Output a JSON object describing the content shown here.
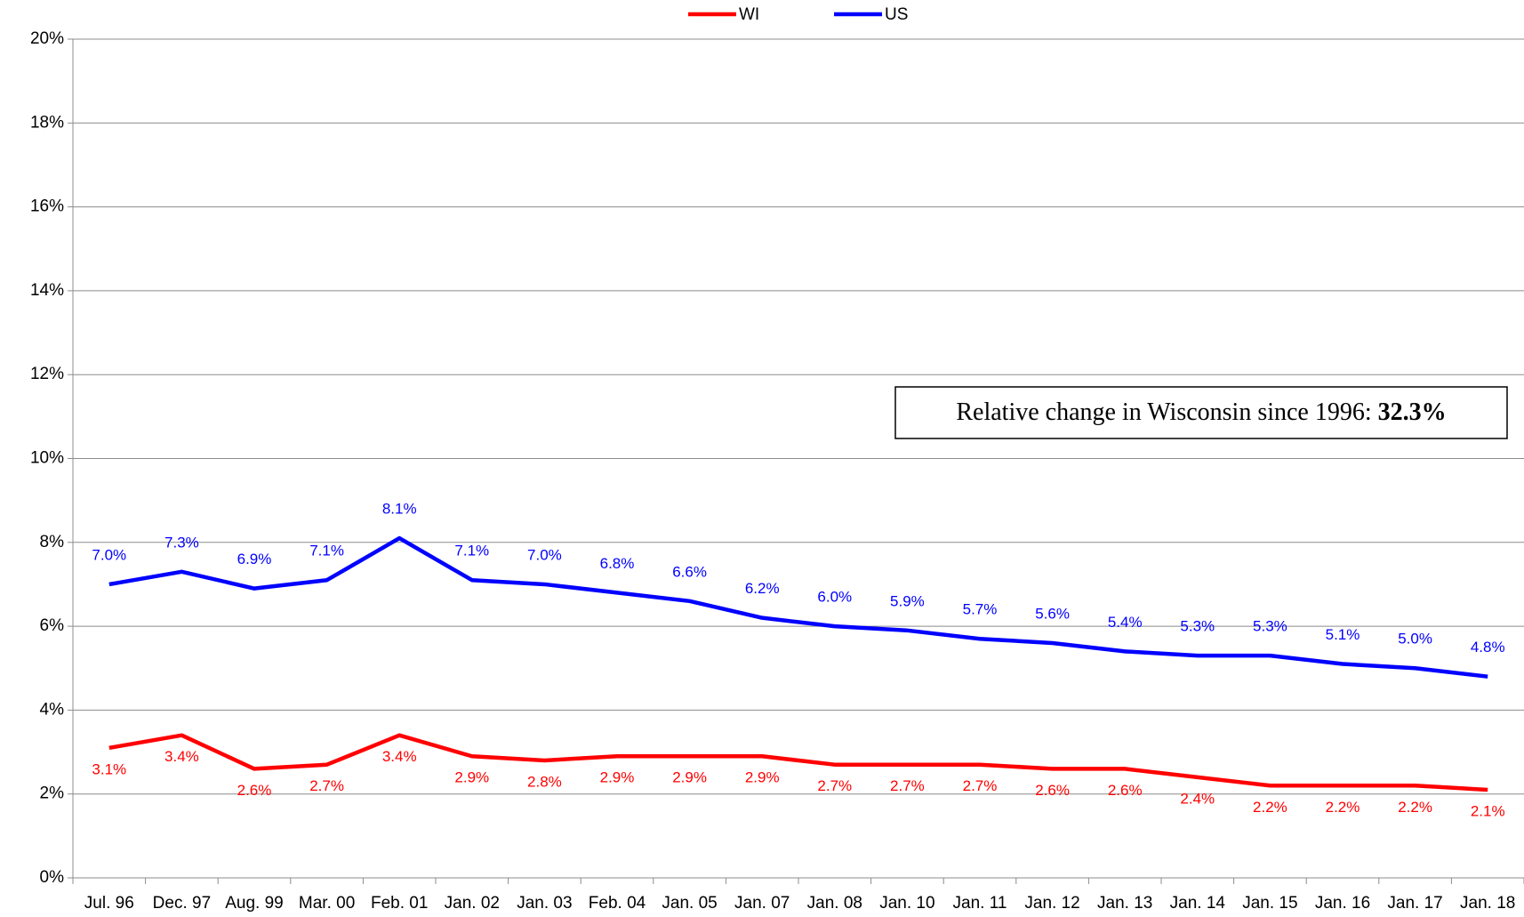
{
  "chart_data": {
    "type": "line",
    "categories": [
      "Jul. 96",
      "Dec. 97",
      "Aug. 99",
      "Mar. 00",
      "Feb. 01",
      "Jan. 02",
      "Jan. 03",
      "Feb. 04",
      "Jan. 05",
      "Jan. 07",
      "Jan. 08",
      "Jan. 10",
      "Jan. 11",
      "Jan. 12",
      "Jan. 13",
      "Jan. 14",
      "Jan. 15",
      "Jan. 16",
      "Jan. 17",
      "Jan. 18"
    ],
    "series": [
      {
        "name": "WI",
        "color": "#ff0000",
        "label_side": "below",
        "values": [
          3.1,
          3.4,
          2.6,
          2.7,
          3.4,
          2.9,
          2.8,
          2.9,
          2.9,
          2.9,
          2.7,
          2.7,
          2.7,
          2.6,
          2.6,
          2.4,
          2.2,
          2.2,
          2.2,
          2.1
        ],
        "value_labels": [
          "3.1%",
          "3.4%",
          "2.6%",
          "2.7%",
          "3.4%",
          "2.9%",
          "2.8%",
          "2.9%",
          "2.9%",
          "2.9%",
          "2.7%",
          "2.7%",
          "2.7%",
          "2.6%",
          "2.6%",
          "2.4%",
          "2.2%",
          "2.2%",
          "2.2%",
          "2.1%"
        ]
      },
      {
        "name": "US",
        "color": "#0000ff",
        "label_side": "above",
        "values": [
          7.0,
          7.3,
          6.9,
          7.1,
          8.1,
          7.1,
          7.0,
          6.8,
          6.6,
          6.2,
          6.0,
          5.9,
          5.7,
          5.6,
          5.4,
          5.3,
          5.3,
          5.1,
          5.0,
          4.8
        ],
        "value_labels": [
          "7.0%",
          "7.3%",
          "6.9%",
          "7.1%",
          "8.1%",
          "7.1%",
          "7.0%",
          "6.8%",
          "6.6%",
          "6.2%",
          "6.0%",
          "5.9%",
          "5.7%",
          "5.6%",
          "5.4%",
          "5.3%",
          "5.3%",
          "5.1%",
          "5.0%",
          "4.8%"
        ]
      }
    ],
    "ylim": [
      0,
      20
    ],
    "yticks": [
      {
        "value": 0,
        "label": "0%"
      },
      {
        "value": 2,
        "label": "2%"
      },
      {
        "value": 4,
        "label": "4%"
      },
      {
        "value": 6,
        "label": "6%"
      },
      {
        "value": 8,
        "label": "8%"
      },
      {
        "value": 10,
        "label": "10%"
      },
      {
        "value": 12,
        "label": "12%"
      },
      {
        "value": 14,
        "label": "14%"
      },
      {
        "value": 16,
        "label": "16%"
      },
      {
        "value": 18,
        "label": "18%"
      },
      {
        "value": 20,
        "label": "20%"
      }
    ],
    "grid": true,
    "legend": "top",
    "annotation": {
      "text": "Relative change in Wisconsin since 1996:",
      "emphasis": "32.3%"
    }
  }
}
